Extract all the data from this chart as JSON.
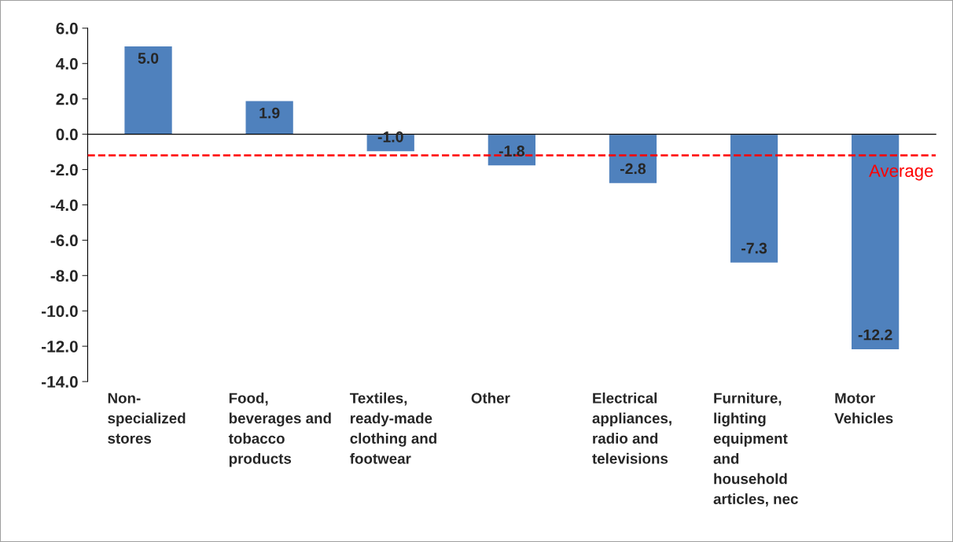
{
  "chart_data": {
    "type": "bar",
    "categories": [
      "Non-\nspecialized\nstores",
      "Food,\nbeverages and\ntobacco\nproducts",
      "Textiles,\nready-made\nclothing and\nfootwear",
      "Other",
      "Electrical\nappliances,\nradio and\ntelevisions",
      "Furniture,\nlighting\nequipment\nand\nhousehold\narticles, nec",
      "Motor\nVehicles"
    ],
    "values": [
      5.0,
      1.9,
      -1.0,
      -1.8,
      -2.8,
      -7.3,
      -12.2
    ],
    "value_labels": [
      "5.0",
      "1.9",
      "-1.0",
      "-1.8",
      "-2.8",
      "-7.3",
      "-12.2"
    ],
    "color": "#4f81bd",
    "ylim": [
      -14,
      6
    ],
    "yticks": [
      {
        "value": -14,
        "label": "-14.0"
      },
      {
        "value": -12,
        "label": "-12.0"
      },
      {
        "value": -10,
        "label": "-10.0"
      },
      {
        "value": -8,
        "label": "-8.0"
      },
      {
        "value": -6,
        "label": "-6.0"
      },
      {
        "value": -4,
        "label": "-4.0"
      },
      {
        "value": -2,
        "label": "-2.0"
      },
      {
        "value": 0,
        "label": "0.0"
      },
      {
        "value": 2,
        "label": "2.0"
      },
      {
        "value": 4,
        "label": "4.0"
      },
      {
        "value": 6,
        "label": "6.0"
      }
    ],
    "ref_lines": [
      {
        "axis": "y",
        "value": -1.2,
        "label": "Average",
        "color": "#ff0000",
        "line_style": "dashed"
      }
    ],
    "legend": false
  }
}
